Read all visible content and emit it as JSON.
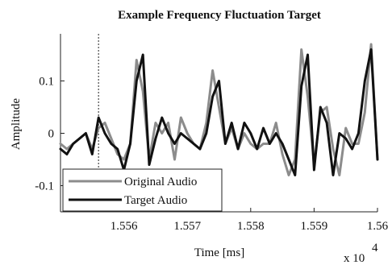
{
  "chart_data": {
    "type": "line",
    "title": "Example Frequency Fluctuation Target",
    "xlabel": "Time [ms]",
    "ylabel": "Amplitude",
    "x_multiplier_label": "x 10",
    "x_multiplier_exponent": "4",
    "xlim": [
      15555,
      15560
    ],
    "ylim": [
      -0.15,
      0.19
    ],
    "xticks": [
      15556,
      15557,
      15558,
      15559,
      15560
    ],
    "xtick_labels": [
      "1.556",
      "1.557",
      "1.558",
      "1.559",
      "1.56"
    ],
    "yticks": [
      -0.1,
      0,
      0.1
    ],
    "ytick_labels": [
      "-0.1",
      "0",
      "0.1"
    ],
    "marker_line_x": 15555.6,
    "grid": false,
    "legend_position": "bottom-left",
    "series": [
      {
        "name": "Original Audio",
        "color": "#8c8c8c",
        "x": [
          15555,
          15555.1,
          15555.2,
          15555.3,
          15555.4,
          15555.5,
          15555.6,
          15555.7,
          15555.8,
          15555.9,
          15556.0,
          15556.1,
          15556.2,
          15556.3,
          15556.4,
          15556.5,
          15556.6,
          15556.7,
          15556.8,
          15556.9,
          15557.0,
          15557.1,
          15557.2,
          15557.3,
          15557.4,
          15557.5,
          15557.6,
          15557.7,
          15557.8,
          15557.9,
          15558.0,
          15558.1,
          15558.2,
          15558.3,
          15558.4,
          15558.5,
          15558.6,
          15558.7,
          15558.8,
          15558.9,
          15559.0,
          15559.1,
          15559.2,
          15559.3,
          15559.4,
          15559.5,
          15559.6,
          15559.7,
          15559.8,
          15559.9,
          15560.0
        ],
        "y": [
          -0.02,
          -0.03,
          -0.02,
          -0.01,
          0.0,
          -0.03,
          0.01,
          0.02,
          -0.01,
          -0.04,
          -0.05,
          -0.02,
          0.14,
          0.08,
          -0.05,
          0.02,
          0.0,
          0.02,
          -0.05,
          0.03,
          0.0,
          -0.02,
          -0.03,
          0.02,
          0.12,
          0.05,
          -0.02,
          0.01,
          -0.03,
          0.0,
          -0.02,
          -0.03,
          -0.02,
          -0.02,
          0.02,
          -0.04,
          -0.08,
          -0.05,
          0.16,
          0.07,
          -0.06,
          0.04,
          0.05,
          -0.03,
          -0.08,
          0.01,
          -0.02,
          -0.02,
          0.04,
          0.17,
          -0.05
        ]
      },
      {
        "name": "Target Audio",
        "color": "#111111",
        "x": [
          15555,
          15555.1,
          15555.2,
          15555.3,
          15555.4,
          15555.5,
          15555.6,
          15555.7,
          15555.8,
          15555.9,
          15556.0,
          15556.1,
          15556.2,
          15556.3,
          15556.4,
          15556.5,
          15556.6,
          15556.7,
          15556.8,
          15556.9,
          15557.0,
          15557.1,
          15557.2,
          15557.3,
          15557.4,
          15557.5,
          15557.6,
          15557.7,
          15557.8,
          15557.9,
          15558.0,
          15558.1,
          15558.2,
          15558.3,
          15558.4,
          15558.5,
          15558.6,
          15558.7,
          15558.8,
          15558.9,
          15559.0,
          15559.1,
          15559.2,
          15559.3,
          15559.4,
          15559.5,
          15559.6,
          15559.7,
          15559.8,
          15559.9,
          15560.0
        ],
        "y": [
          -0.03,
          -0.04,
          -0.02,
          -0.01,
          0.0,
          -0.04,
          0.03,
          0.0,
          -0.02,
          -0.03,
          -0.07,
          -0.02,
          0.1,
          0.15,
          -0.06,
          -0.01,
          0.03,
          0.0,
          -0.02,
          0.0,
          -0.01,
          -0.02,
          -0.03,
          0.0,
          0.07,
          0.1,
          -0.02,
          0.02,
          -0.03,
          0.02,
          0.0,
          -0.03,
          0.01,
          -0.02,
          0.0,
          -0.02,
          -0.05,
          -0.08,
          0.09,
          0.15,
          -0.07,
          0.05,
          0.02,
          -0.08,
          0.0,
          -0.01,
          -0.03,
          0.0,
          0.1,
          0.16,
          -0.05
        ]
      }
    ]
  }
}
